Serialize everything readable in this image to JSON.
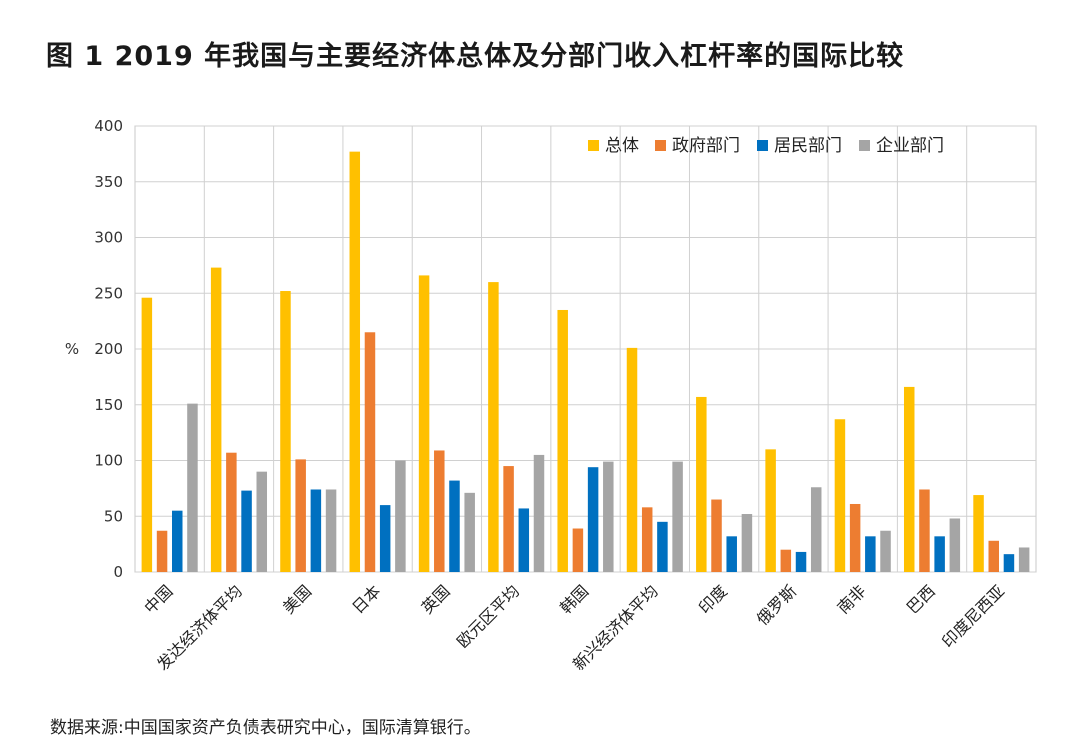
{
  "title": "图 1 2019 年我国与主要经济体总体及分部门收入杠杆率的国际比较",
  "source": "数据来源:中国国家资产负债表研究中心，国际清算银行。",
  "chart_data": {
    "type": "bar",
    "ylabel": "%",
    "ylim": [
      0,
      400
    ],
    "yticks": [
      0,
      50,
      100,
      150,
      200,
      250,
      300,
      350,
      400
    ],
    "grid": true,
    "legend_position": "top-right",
    "categories": [
      "中国",
      "发达经济体平均",
      "美国",
      "日本",
      "英国",
      "欧元区平均",
      "韩国",
      "新兴经济体平均",
      "印度",
      "俄罗斯",
      "南非",
      "巴西",
      "印度尼西亚"
    ],
    "series": [
      {
        "name": "总体",
        "color": "#FFC000",
        "values": [
          246,
          273,
          252,
          377,
          266,
          260,
          235,
          201,
          157,
          110,
          137,
          166,
          69
        ]
      },
      {
        "name": "政府部门",
        "color": "#ED7D31",
        "values": [
          37,
          107,
          101,
          215,
          109,
          95,
          39,
          58,
          65,
          20,
          61,
          74,
          28
        ]
      },
      {
        "name": "居民部门",
        "color": "#0070C0",
        "values": [
          55,
          73,
          74,
          60,
          82,
          57,
          94,
          45,
          32,
          18,
          32,
          32,
          16
        ]
      },
      {
        "name": "企业部门",
        "color": "#A5A5A5",
        "values": [
          151,
          90,
          74,
          100,
          71,
          105,
          99,
          99,
          52,
          76,
          37,
          48,
          22
        ]
      }
    ]
  }
}
